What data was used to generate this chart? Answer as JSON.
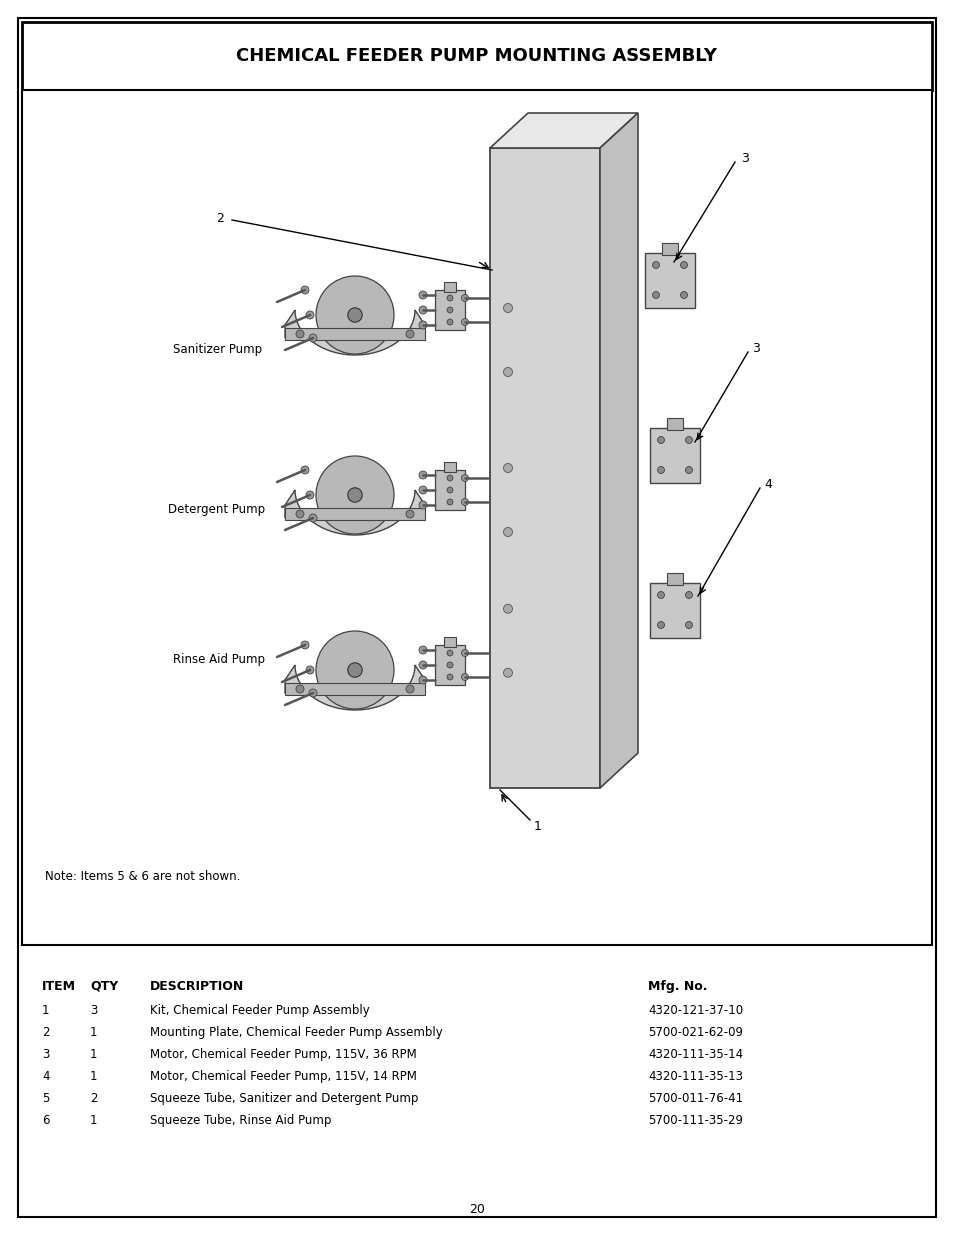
{
  "title": "CHEMICAL FEEDER PUMP MOUNTING ASSEMBLY",
  "page_number": "20",
  "note": "Note: Items 5 & 6 are not shown.",
  "table_headers": [
    "ITEM",
    "QTY",
    "DESCRIPTION",
    "Mfg. No."
  ],
  "table_rows": [
    [
      "1",
      "3",
      "Kit, Chemical Feeder Pump Assembly",
      "4320-121-37-10"
    ],
    [
      "2",
      "1",
      "Mounting Plate, Chemical Feeder Pump Assembly",
      "5700-021-62-09"
    ],
    [
      "3",
      "1",
      "Motor, Chemical Feeder Pump, 115V, 36 RPM",
      "4320-111-35-14"
    ],
    [
      "4",
      "1",
      "Motor, Chemical Feeder Pump, 115V, 14 RPM",
      "4320-111-35-13"
    ],
    [
      "5",
      "2",
      "Squeeze Tube, Sanitizer and Detergent Pump",
      "5700-011-76-41"
    ],
    [
      "6",
      "1",
      "Squeeze Tube, Rinse Aid Pump",
      "5700-111-35-29"
    ]
  ],
  "bg": "#ffffff",
  "title_fontsize": 13,
  "label_fontsize": 8.5,
  "table_header_fontsize": 9,
  "table_row_fontsize": 8.5,
  "note_fontsize": 8.5,
  "page_num_fontsize": 9
}
